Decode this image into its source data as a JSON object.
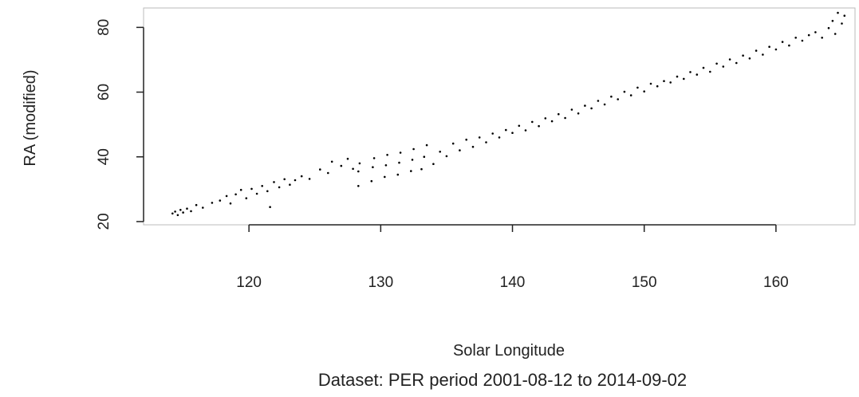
{
  "chart_data": {
    "type": "scatter",
    "title": "",
    "xlabel": "Solar Longitude",
    "ylabel": "RA (modified)",
    "caption": "Dataset: PER period 2001-08-12 to 2014-09-02",
    "xlim": [
      112,
      166
    ],
    "ylim": [
      19,
      86
    ],
    "x_ticks": [
      120,
      130,
      140,
      150,
      160
    ],
    "y_ticks": [
      20,
      40,
      60,
      80
    ],
    "x_tick_labels": [
      "120",
      "130",
      "140",
      "150",
      "160"
    ],
    "y_tick_labels": [
      "20",
      "40",
      "60",
      "80"
    ],
    "grid": false,
    "legend": "none",
    "point_color": "#000000",
    "series": [
      {
        "values_description_note": "",
        "points": [
          [
            114.2,
            22.5
          ],
          [
            114.4,
            23.1
          ],
          [
            114.6,
            22.0
          ],
          [
            114.8,
            23.6
          ],
          [
            115.0,
            22.8
          ],
          [
            115.3,
            24.0
          ],
          [
            115.6,
            23.2
          ],
          [
            116.0,
            25.1
          ],
          [
            116.5,
            24.3
          ],
          [
            117.2,
            25.8
          ],
          [
            117.8,
            26.5
          ],
          [
            118.3,
            27.9
          ],
          [
            118.6,
            25.6
          ],
          [
            119.0,
            28.4
          ],
          [
            119.4,
            29.8
          ],
          [
            119.8,
            27.2
          ],
          [
            120.2,
            30.1
          ],
          [
            120.6,
            28.6
          ],
          [
            121.0,
            31.0
          ],
          [
            121.4,
            29.4
          ],
          [
            121.6,
            24.5
          ],
          [
            121.9,
            32.2
          ],
          [
            122.3,
            30.6
          ],
          [
            122.7,
            33.1
          ],
          [
            123.1,
            31.4
          ],
          [
            123.5,
            32.8
          ],
          [
            124.0,
            34.0
          ],
          [
            124.6,
            33.2
          ],
          [
            125.4,
            36.1
          ],
          [
            126.0,
            35.0
          ],
          [
            126.3,
            38.5
          ],
          [
            127.0,
            37.2
          ],
          [
            127.5,
            39.4
          ],
          [
            127.9,
            36.3
          ],
          [
            128.3,
            31.0
          ],
          [
            128.3,
            35.5
          ],
          [
            128.4,
            38.0
          ],
          [
            129.3,
            32.5
          ],
          [
            129.4,
            36.8
          ],
          [
            129.5,
            39.6
          ],
          [
            130.3,
            33.8
          ],
          [
            130.4,
            37.4
          ],
          [
            130.5,
            40.6
          ],
          [
            131.3,
            34.5
          ],
          [
            131.4,
            38.2
          ],
          [
            131.5,
            41.3
          ],
          [
            132.3,
            35.6
          ],
          [
            132.4,
            39.1
          ],
          [
            132.5,
            42.4
          ],
          [
            133.1,
            36.2
          ],
          [
            133.3,
            40.0
          ],
          [
            133.5,
            43.6
          ],
          [
            134.0,
            37.8
          ],
          [
            134.5,
            41.6
          ],
          [
            135.0,
            40.2
          ],
          [
            135.5,
            44.1
          ],
          [
            136.0,
            42.0
          ],
          [
            136.5,
            45.3
          ],
          [
            137.0,
            43.1
          ],
          [
            137.5,
            46.0
          ],
          [
            138.0,
            44.5
          ],
          [
            138.5,
            47.2
          ],
          [
            139.0,
            46.0
          ],
          [
            139.5,
            48.3
          ],
          [
            140.0,
            47.4
          ],
          [
            140.5,
            49.6
          ],
          [
            141.0,
            48.2
          ],
          [
            141.5,
            50.8
          ],
          [
            142.0,
            49.5
          ],
          [
            142.5,
            51.9
          ],
          [
            143.0,
            51.0
          ],
          [
            143.5,
            53.2
          ],
          [
            144.0,
            52.0
          ],
          [
            144.5,
            54.6
          ],
          [
            145.0,
            53.4
          ],
          [
            145.5,
            55.8
          ],
          [
            146.0,
            55.0
          ],
          [
            146.5,
            57.3
          ],
          [
            147.0,
            56.2
          ],
          [
            147.5,
            58.6
          ],
          [
            148.0,
            57.8
          ],
          [
            148.5,
            60.1
          ],
          [
            149.0,
            59.0
          ],
          [
            149.5,
            61.4
          ],
          [
            150.0,
            60.2
          ],
          [
            150.5,
            62.6
          ],
          [
            151.0,
            61.8
          ],
          [
            151.5,
            63.4
          ],
          [
            152.0,
            63.0
          ],
          [
            152.5,
            64.8
          ],
          [
            153.0,
            64.1
          ],
          [
            153.5,
            66.2
          ],
          [
            154.0,
            65.4
          ],
          [
            154.5,
            67.5
          ],
          [
            155.0,
            66.3
          ],
          [
            155.5,
            68.8
          ],
          [
            156.0,
            67.9
          ],
          [
            156.5,
            70.1
          ],
          [
            157.0,
            69.0
          ],
          [
            157.5,
            71.3
          ],
          [
            158.0,
            70.4
          ],
          [
            158.5,
            72.8
          ],
          [
            159.0,
            71.6
          ],
          [
            159.5,
            74.0
          ],
          [
            160.0,
            73.2
          ],
          [
            160.5,
            75.5
          ],
          [
            161.0,
            74.4
          ],
          [
            161.5,
            76.8
          ],
          [
            162.0,
            75.9
          ],
          [
            162.5,
            77.6
          ],
          [
            163.0,
            78.5
          ],
          [
            163.5,
            76.8
          ],
          [
            164.0,
            79.8
          ],
          [
            164.3,
            82.0
          ],
          [
            164.5,
            78.0
          ],
          [
            164.7,
            84.5
          ],
          [
            165.0,
            81.2
          ],
          [
            165.2,
            83.6
          ]
        ]
      }
    ]
  }
}
